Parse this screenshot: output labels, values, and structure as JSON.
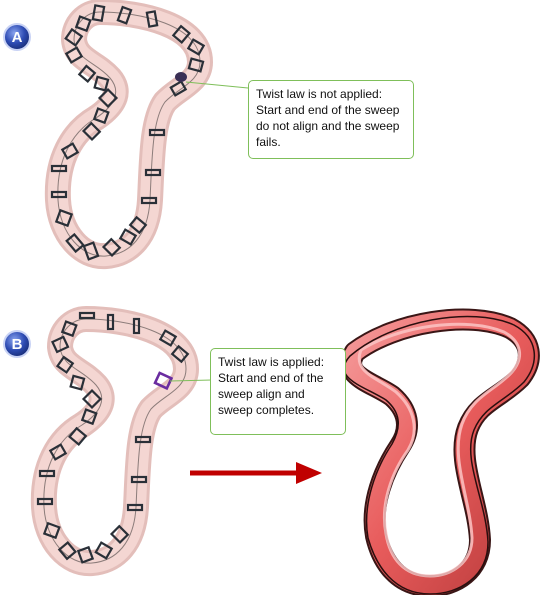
{
  "panel_a": {
    "label": "A",
    "callout": "Twist law is not applied:\nStart and end of the sweep\ndo not align and the sweep\nfails."
  },
  "panel_b": {
    "label": "B",
    "callout": "Twist law is applied:\nStart and end of the\nsweep align and\nsweep completes."
  },
  "colors": {
    "badge": "#2d4bb3",
    "callout_border": "#7fbf5a",
    "tube_fill": "#f2c9c4",
    "arrow": "#c00000",
    "solid_band": "#e85c5c",
    "highlight_section": "#6a2ca0"
  }
}
